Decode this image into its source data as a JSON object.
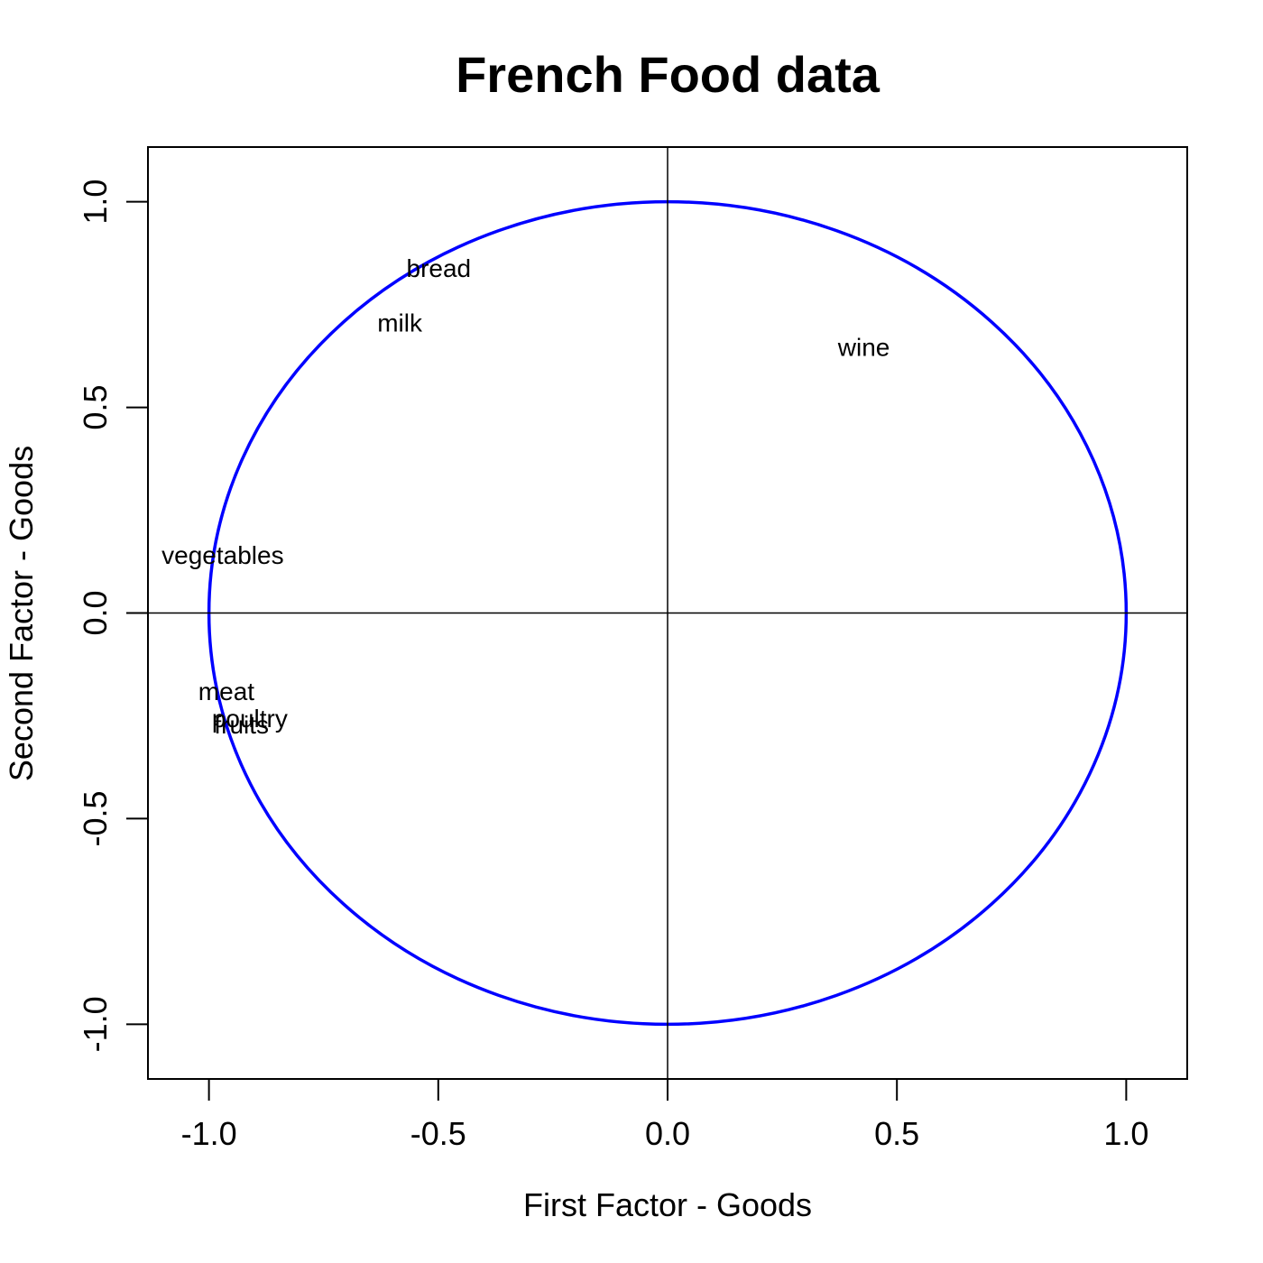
{
  "chart_data": {
    "type": "scatter",
    "title": "French Food data",
    "xlabel": "First Factor - Goods",
    "ylabel": "Second Factor - Goods",
    "xlim": [
      -1.133,
      1.133
    ],
    "ylim": [
      -1.133,
      1.133
    ],
    "x_ticks": [
      -1.0,
      -0.5,
      0.0,
      0.5,
      1.0
    ],
    "x_tick_labels": [
      "-1.0",
      "-0.5",
      "0.0",
      "0.5",
      "1.0"
    ],
    "y_ticks": [
      -1.0,
      -0.5,
      0.0,
      0.5,
      1.0
    ],
    "y_tick_labels": [
      "-1.0",
      "-0.5",
      "0.0",
      "0.5",
      "1.0"
    ],
    "grid": false,
    "reference_lines": {
      "x": 0,
      "y": 0
    },
    "circle": {
      "center": [
        0,
        0
      ],
      "radius": 1,
      "color": "#0000ff"
    },
    "points": [
      {
        "label": "bread",
        "x": -0.499,
        "y": 0.838
      },
      {
        "label": "vegetables",
        "x": -0.97,
        "y": 0.14
      },
      {
        "label": "fruits",
        "x": -0.929,
        "y": -0.272
      },
      {
        "label": "meat",
        "x": -0.962,
        "y": -0.191
      },
      {
        "label": "poultry",
        "x": -0.911,
        "y": -0.257
      },
      {
        "label": "milk",
        "x": -0.584,
        "y": 0.705
      },
      {
        "label": "wine",
        "x": 0.428,
        "y": 0.646
      }
    ]
  }
}
